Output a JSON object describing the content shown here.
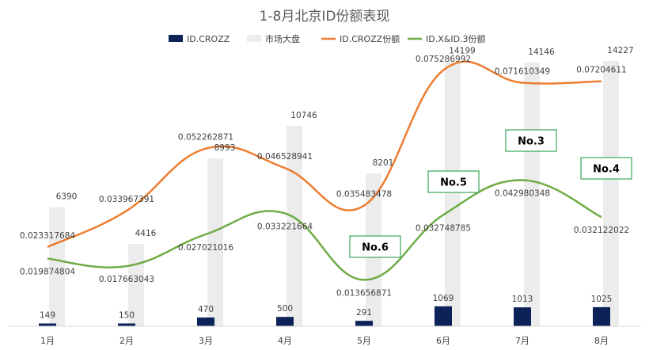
{
  "chart_data": {
    "type": "bar",
    "title": "1-8月北京ID份额表现",
    "categories": [
      "1月",
      "2月",
      "3月",
      "4月",
      "5月",
      "6月",
      "7月",
      "8月"
    ],
    "legend_position": "top",
    "grid": false,
    "bar_ylim": [
      0,
      15500
    ],
    "line_ylim": [
      0,
      0.092
    ],
    "series": [
      {
        "name": "ID.CROZZ",
        "type": "bar",
        "color": "#0d2259",
        "values": [
          149,
          150,
          470,
          500,
          291,
          1069,
          1013,
          1025
        ],
        "labels": [
          "149",
          "150",
          "470",
          "500",
          "291",
          "1069",
          "1013",
          "1025"
        ]
      },
      {
        "name": "市场大盘",
        "type": "bar",
        "color": "#ececec",
        "values": [
          6390,
          4416,
          8993,
          10746,
          8201,
          14199,
          14146,
          14227
        ],
        "labels": [
          "6390",
          "4416",
          "8993",
          "10746",
          "8201",
          "14199",
          "14146",
          "14227"
        ]
      },
      {
        "name": "ID.CROZZ份额",
        "type": "line",
        "color": "#ed7d31",
        "values": [
          0.023317684,
          0.033967391,
          0.052262871,
          0.046528941,
          0.035483478,
          0.075286992,
          0.071610349,
          0.07204611
        ],
        "labels": [
          "0.023317684",
          "0.033967391",
          "0.052262871",
          "0.046528941",
          "0.035483478",
          "0.075286992",
          "0.071610349",
          "0.07204611"
        ]
      },
      {
        "name": "ID.X&ID.3份额",
        "type": "line",
        "color": "#70ad47",
        "values": [
          0.019874804,
          0.017663043,
          0.027021016,
          0.033221664,
          0.013656871,
          0.032748785,
          0.042980348,
          0.032122022
        ],
        "labels": [
          "0.019874804",
          "0.017663043",
          "0.027021016",
          "0.033221664",
          "0.013656871",
          "0.032748785",
          "0.042980348",
          "0.032122022"
        ]
      }
    ],
    "annotations": [
      {
        "text": "No.6",
        "category": "5月"
      },
      {
        "text": "No.5",
        "category": "6月"
      },
      {
        "text": "No.3",
        "category": "7月"
      },
      {
        "text": "No.4",
        "category": "8月"
      }
    ]
  }
}
